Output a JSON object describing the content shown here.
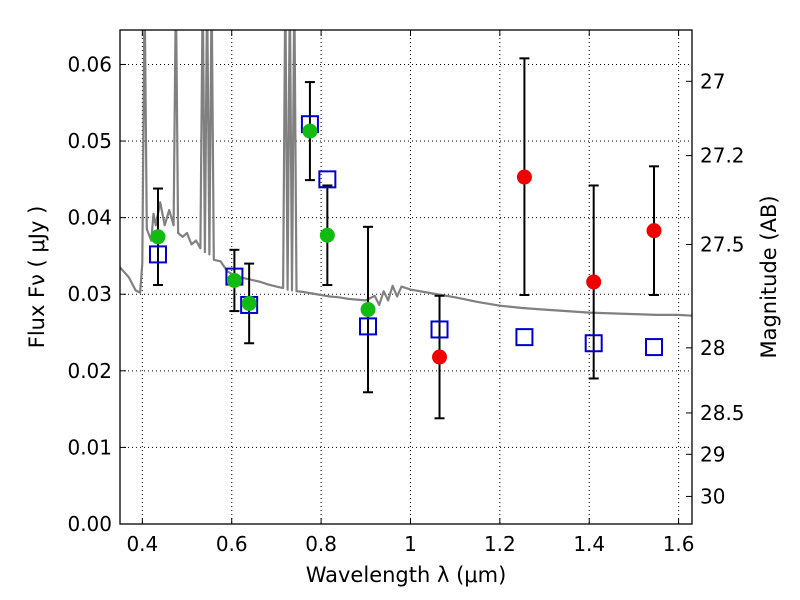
{
  "chart_data": {
    "type": "scatter",
    "xlabel": "Wavelength  λ (μm)",
    "ylabel": "Flux  Fν  ( μJy )",
    "y2label": "Magnitude (AB)",
    "xlim": [
      0.35,
      1.63
    ],
    "ylim": [
      0.0,
      0.0645
    ],
    "xticks": [
      0.4,
      0.6,
      0.8,
      1.0,
      1.2,
      1.4,
      1.6
    ],
    "xtick_labels": [
      "0.4",
      "0.6",
      "0.8",
      "1",
      "1.2",
      "1.4",
      "1.6"
    ],
    "yticks": [
      0.0,
      0.01,
      0.02,
      0.03,
      0.04,
      0.05,
      0.06
    ],
    "ytick_labels": [
      "0.00",
      "0.01",
      "0.02",
      "0.03",
      "0.04",
      "0.05",
      "0.06"
    ],
    "y2ticks": [
      {
        "label": "27",
        "flux": 0.0578
      },
      {
        "label": "27.2",
        "flux": 0.0481
      },
      {
        "label": "27.5",
        "flux": 0.0365
      },
      {
        "label": "28",
        "flux": 0.023
      },
      {
        "label": "28.5",
        "flux": 0.0145
      },
      {
        "label": "29",
        "flux": 0.0091
      },
      {
        "label": "30",
        "flux": 0.0036
      }
    ],
    "grid": true,
    "colors": {
      "green": "#11bb11",
      "red": "#ee0000",
      "blue": "#0000cc",
      "model": "#808080",
      "error": "#000000"
    },
    "series": [
      {
        "marker": "circle",
        "color": "green",
        "points": [
          {
            "x": 0.435,
            "y": 0.0375,
            "err": [
              0.0312,
              0.0438
            ]
          },
          {
            "x": 0.606,
            "y": 0.0318,
            "err": [
              0.0278,
              0.0358
            ]
          },
          {
            "x": 0.639,
            "y": 0.0288,
            "err": [
              0.0236,
              0.034
            ]
          },
          {
            "x": 0.775,
            "y": 0.0513,
            "err": [
              0.0449,
              0.0577
            ]
          },
          {
            "x": 0.814,
            "y": 0.0377,
            "err": [
              0.0312,
              0.0442
            ]
          },
          {
            "x": 0.905,
            "y": 0.028,
            "err": [
              0.0172,
              0.0388
            ]
          }
        ]
      },
      {
        "marker": "circle",
        "color": "red",
        "points": [
          {
            "x": 1.065,
            "y": 0.0218,
            "err": [
              0.0138,
              0.0298
            ]
          },
          {
            "x": 1.255,
            "y": 0.0453,
            "err": [
              0.0299,
              0.0608
            ]
          },
          {
            "x": 1.41,
            "y": 0.0316,
            "err": [
              0.019,
              0.0442
            ]
          },
          {
            "x": 1.545,
            "y": 0.0383,
            "err": [
              0.0299,
              0.0467
            ]
          }
        ]
      },
      {
        "marker": "square",
        "color": "blue",
        "points": [
          {
            "x": 0.435,
            "y": 0.0352
          },
          {
            "x": 0.606,
            "y": 0.0323
          },
          {
            "x": 0.639,
            "y": 0.0286
          },
          {
            "x": 0.775,
            "y": 0.0522
          },
          {
            "x": 0.814,
            "y": 0.045
          },
          {
            "x": 0.905,
            "y": 0.0258
          },
          {
            "x": 1.065,
            "y": 0.0254
          },
          {
            "x": 1.255,
            "y": 0.0244
          },
          {
            "x": 1.41,
            "y": 0.0236
          },
          {
            "x": 1.545,
            "y": 0.0231
          }
        ]
      },
      {
        "marker": "line",
        "color": "model",
        "points": [
          [
            0.35,
            0.0335
          ],
          [
            0.37,
            0.0322
          ],
          [
            0.385,
            0.0305
          ],
          [
            0.395,
            0.0302
          ],
          [
            0.4,
            0.034
          ],
          [
            0.405,
            0.07
          ],
          [
            0.41,
            0.0385
          ],
          [
            0.42,
            0.037
          ],
          [
            0.425,
            0.0405
          ],
          [
            0.43,
            0.039
          ],
          [
            0.44,
            0.042
          ],
          [
            0.45,
            0.039
          ],
          [
            0.46,
            0.041
          ],
          [
            0.47,
            0.039
          ],
          [
            0.475,
            0.07
          ],
          [
            0.48,
            0.038
          ],
          [
            0.49,
            0.0375
          ],
          [
            0.5,
            0.038
          ],
          [
            0.51,
            0.0365
          ],
          [
            0.52,
            0.037
          ],
          [
            0.53,
            0.036
          ],
          [
            0.535,
            0.07
          ],
          [
            0.54,
            0.0355
          ],
          [
            0.545,
            0.07
          ],
          [
            0.55,
            0.0352
          ],
          [
            0.555,
            0.07
          ],
          [
            0.56,
            0.0345
          ],
          [
            0.575,
            0.0343
          ],
          [
            0.59,
            0.033
          ],
          [
            0.605,
            0.0325
          ],
          [
            0.62,
            0.0322
          ],
          [
            0.635,
            0.032
          ],
          [
            0.65,
            0.0318
          ],
          [
            0.665,
            0.0316
          ],
          [
            0.68,
            0.0313
          ],
          [
            0.7,
            0.031
          ],
          [
            0.715,
            0.0308
          ],
          [
            0.72,
            0.07
          ],
          [
            0.725,
            0.0306
          ],
          [
            0.73,
            0.07
          ],
          [
            0.735,
            0.0305
          ],
          [
            0.74,
            0.07
          ],
          [
            0.745,
            0.0304
          ],
          [
            0.76,
            0.0303
          ],
          [
            0.78,
            0.0301
          ],
          [
            0.8,
            0.0299
          ],
          [
            0.82,
            0.0297
          ],
          [
            0.84,
            0.0296
          ],
          [
            0.86,
            0.0294
          ],
          [
            0.88,
            0.0293
          ],
          [
            0.9,
            0.0292
          ],
          [
            0.92,
            0.0298
          ],
          [
            0.93,
            0.0286
          ],
          [
            0.94,
            0.0304
          ],
          [
            0.95,
            0.0292
          ],
          [
            0.96,
            0.0311
          ],
          [
            0.97,
            0.0297
          ],
          [
            0.98,
            0.031
          ],
          [
            1.0,
            0.0306
          ],
          [
            1.05,
            0.0301
          ],
          [
            1.1,
            0.0296
          ],
          [
            1.15,
            0.029
          ],
          [
            1.2,
            0.0285
          ],
          [
            1.25,
            0.0282
          ],
          [
            1.3,
            0.028
          ],
          [
            1.35,
            0.0278
          ],
          [
            1.4,
            0.0276
          ],
          [
            1.45,
            0.0275
          ],
          [
            1.5,
            0.0274
          ],
          [
            1.55,
            0.0273
          ],
          [
            1.6,
            0.0273
          ],
          [
            1.63,
            0.0272
          ]
        ]
      }
    ]
  }
}
